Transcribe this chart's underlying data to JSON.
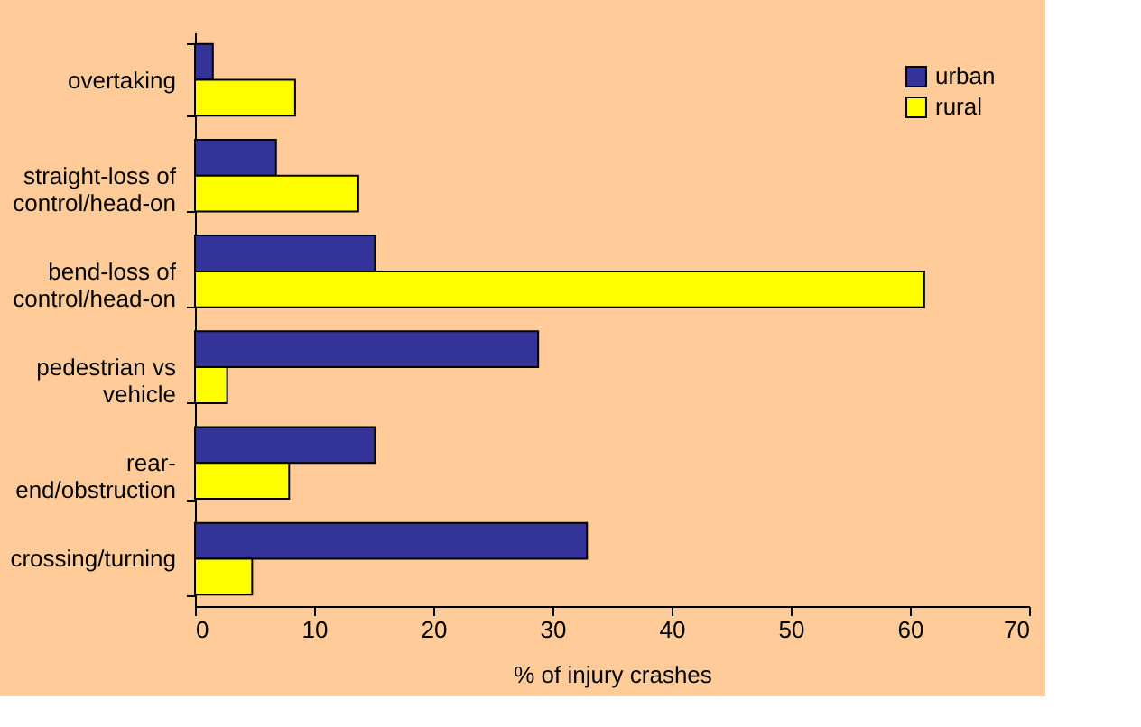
{
  "chart_data": {
    "type": "bar",
    "orientation": "horizontal",
    "xlabel": "% of injury crashes",
    "categories": [
      "overtaking",
      "straight-loss of\ncontrol/head-on",
      "bend-loss of\ncontrol/head-on",
      "pedestrian vs\nvehicle",
      "rear-\nend/obstruction",
      "crossing/turning"
    ],
    "series": [
      {
        "name": "urban",
        "color": "#333399",
        "values": [
          1.5,
          6.8,
          15.1,
          28.8,
          15.1,
          32.9
        ]
      },
      {
        "name": "rural",
        "color": "#ffff00",
        "values": [
          8.4,
          13.7,
          61.2,
          2.7,
          7.9,
          4.8
        ]
      }
    ],
    "xlim": [
      0,
      70
    ],
    "xticks": [
      0,
      10,
      20,
      30,
      40,
      50,
      60,
      70
    ],
    "grid": false,
    "legend": "top right"
  }
}
